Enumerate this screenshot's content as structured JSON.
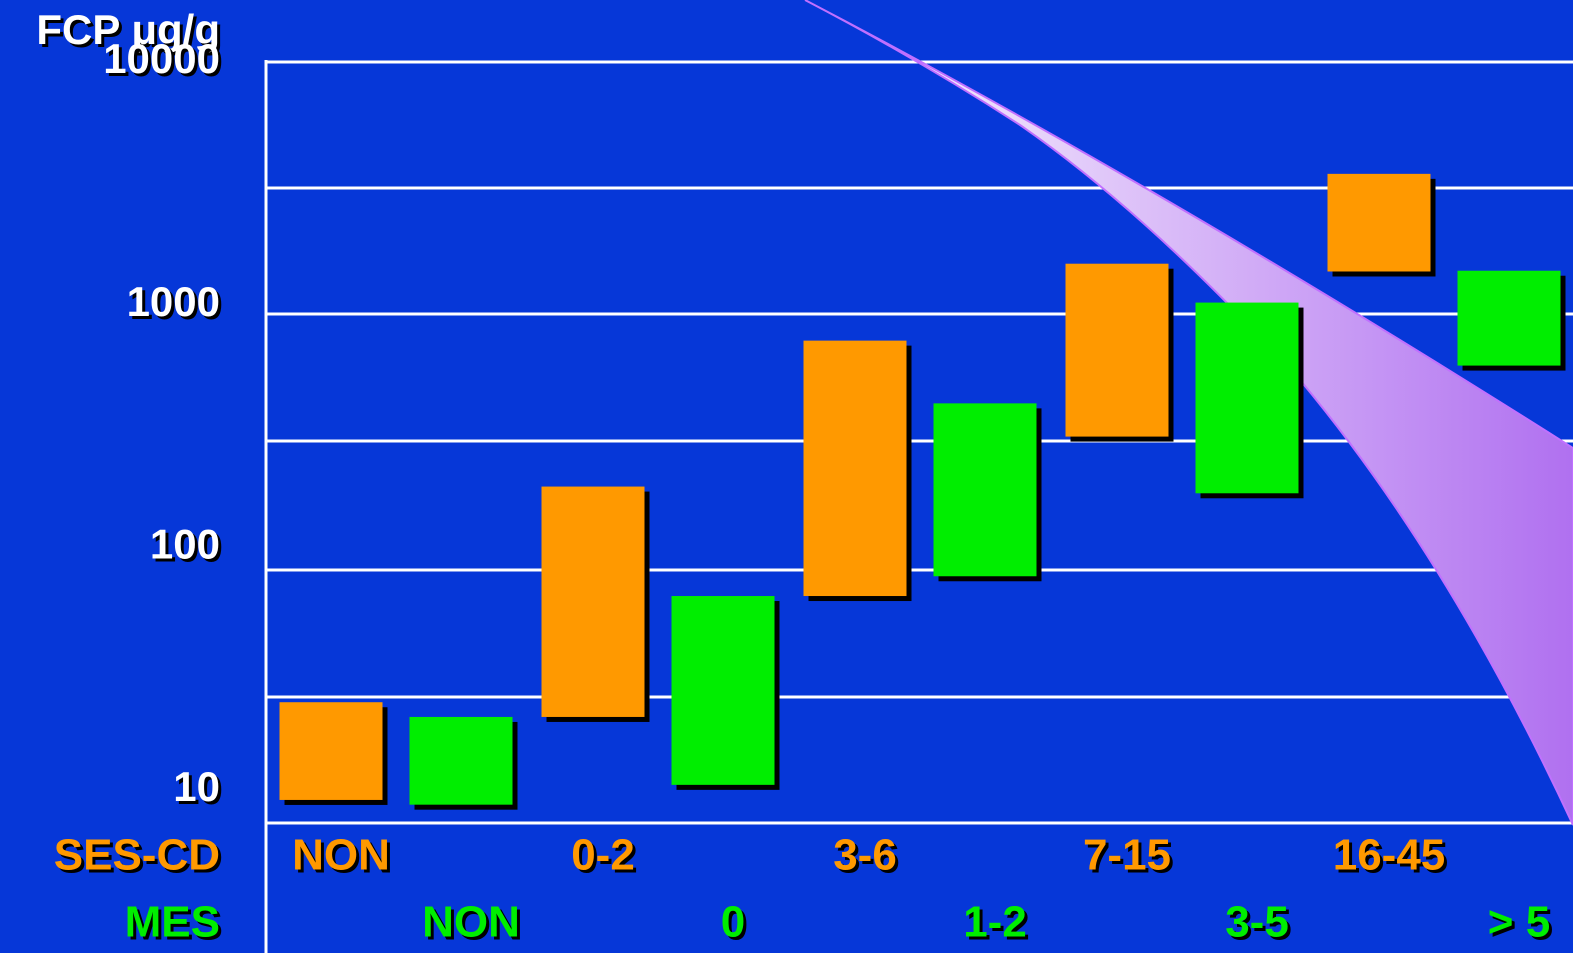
{
  "chart_data": {
    "type": "floating-bar",
    "title": "FCP μg/g",
    "log_scale": true,
    "ylim": [
      7.3,
      10000
    ],
    "yticks": [
      10,
      100,
      1000,
      10000
    ],
    "series": [
      {
        "name": "SES-CD",
        "color": "#ff9900",
        "categories": [
          "NON",
          "0-2",
          "3-6",
          "7-15",
          "16-45"
        ],
        "low": [
          9.1,
          20,
          63,
          286,
          1370
        ],
        "high": [
          23,
          178,
          711,
          1475,
          3460
        ]
      },
      {
        "name": "MES",
        "color": "#00ee00",
        "categories": [
          "NON",
          "0",
          "1-2",
          "3-5",
          "> 5"
        ],
        "low": [
          8.7,
          10.5,
          76,
          167,
          561
        ],
        "high": [
          20,
          63,
          392,
          1020,
          1380
        ]
      }
    ]
  }
}
